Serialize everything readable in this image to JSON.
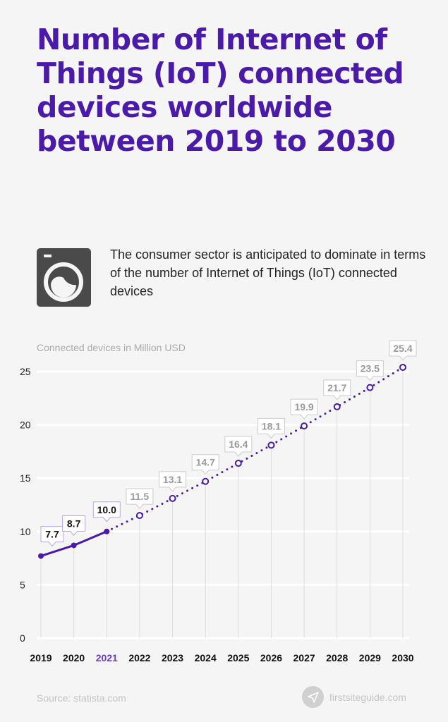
{
  "title": "Number of Internet of Things (IoT) connected devices worldwide between 2019 to 2030",
  "subtitle": "The consumer sector is anticipated to dominate in terms of  the number of Internet of Things (IoT) connected devices",
  "icon": "washing-machine-icon",
  "source": "Source: statista.com",
  "brand": "firstsiteguide.com",
  "chart_data": {
    "type": "line",
    "ylabel": "Connected devices in Million USD",
    "ylim": [
      0,
      25
    ],
    "yticks": [
      0,
      5,
      10,
      15,
      20,
      25
    ],
    "grid": true,
    "categories": [
      "2019",
      "2020",
      "2021",
      "2022",
      "2023",
      "2024",
      "2025",
      "2026",
      "2027",
      "2028",
      "2029",
      "2030"
    ],
    "values": [
      7.7,
      8.7,
      10.0,
      11.5,
      13.1,
      14.7,
      16.4,
      18.1,
      19.9,
      21.7,
      23.5,
      25.4
    ],
    "labels": [
      "7.7",
      "8.7",
      "10.0",
      "11.5",
      "13.1",
      "14.7",
      "16.4",
      "18.1",
      "19.9",
      "21.7",
      "23.5",
      "25.4"
    ],
    "actual_through": "2021",
    "highlight_category": "2021",
    "colors": {
      "line": "#4a1aa8",
      "highlight": "#6a3fc8",
      "forecast_label": "#9a9a9a",
      "actual_label": "#111111"
    }
  }
}
